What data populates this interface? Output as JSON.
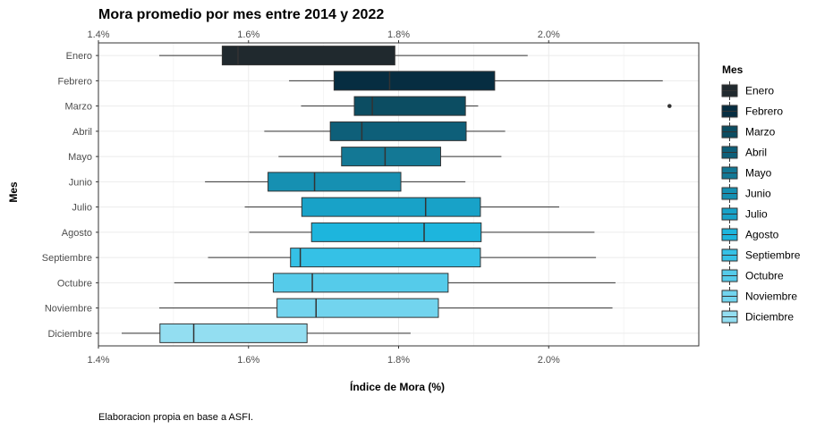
{
  "chart_data": {
    "type": "boxplot",
    "orientation": "horizontal",
    "title": "Mora promedio por mes entre 2014 y 2022",
    "xlabel": "Índice de Mora (%)",
    "ylabel": "Mes",
    "caption": "Elaboracion propia en base a ASFI.",
    "xlim": [
      1.4,
      2.2
    ],
    "x_ticks": [
      1.4,
      1.6,
      1.8,
      2.0
    ],
    "x_tick_labels": [
      "1.4%",
      "1.6%",
      "1.8%",
      "2.0%"
    ],
    "grid": true,
    "legend": {
      "title": "Mes",
      "position": "right"
    },
    "series": [
      {
        "name": "Enero",
        "color": "#20292e",
        "min": 1.481,
        "q1": 1.565,
        "median": 1.586,
        "q3": 1.795,
        "max": 1.972,
        "outliers": []
      },
      {
        "name": "Febrero",
        "color": "#062d41",
        "min": 1.654,
        "q1": 1.714,
        "median": 1.788,
        "q3": 1.928,
        "max": 2.152,
        "outliers": []
      },
      {
        "name": "Marzo",
        "color": "#0c4d62",
        "min": 1.67,
        "q1": 1.741,
        "median": 1.765,
        "q3": 1.889,
        "max": 1.906,
        "outliers": [
          2.161
        ]
      },
      {
        "name": "Abril",
        "color": "#0e5f79",
        "min": 1.621,
        "q1": 1.709,
        "median": 1.751,
        "q3": 1.89,
        "max": 1.942,
        "outliers": []
      },
      {
        "name": "Mayo",
        "color": "#137895",
        "min": 1.64,
        "q1": 1.724,
        "median": 1.782,
        "q3": 1.856,
        "max": 1.937,
        "outliers": []
      },
      {
        "name": "Junio",
        "color": "#1690b2",
        "min": 1.542,
        "q1": 1.626,
        "median": 1.688,
        "q3": 1.803,
        "max": 1.889,
        "outliers": []
      },
      {
        "name": "Julio",
        "color": "#18a2c8",
        "min": 1.595,
        "q1": 1.671,
        "median": 1.836,
        "q3": 1.909,
        "max": 2.014,
        "outliers": []
      },
      {
        "name": "Agosto",
        "color": "#1db5dd",
        "min": 1.601,
        "q1": 1.684,
        "median": 1.834,
        "q3": 1.91,
        "max": 2.061,
        "outliers": []
      },
      {
        "name": "Septiembre",
        "color": "#35c1e6",
        "min": 1.546,
        "q1": 1.656,
        "median": 1.669,
        "q3": 1.909,
        "max": 2.063,
        "outliers": []
      },
      {
        "name": "Octubre",
        "color": "#55cbea",
        "min": 1.501,
        "q1": 1.633,
        "median": 1.685,
        "q3": 1.866,
        "max": 2.089,
        "outliers": []
      },
      {
        "name": "Noviembre",
        "color": "#72d4ee",
        "min": 1.481,
        "q1": 1.638,
        "median": 1.69,
        "q3": 1.853,
        "max": 2.085,
        "outliers": []
      },
      {
        "name": "Diciembre",
        "color": "#93def1",
        "min": 1.431,
        "q1": 1.482,
        "median": 1.527,
        "q3": 1.678,
        "max": 1.816,
        "outliers": []
      }
    ]
  }
}
